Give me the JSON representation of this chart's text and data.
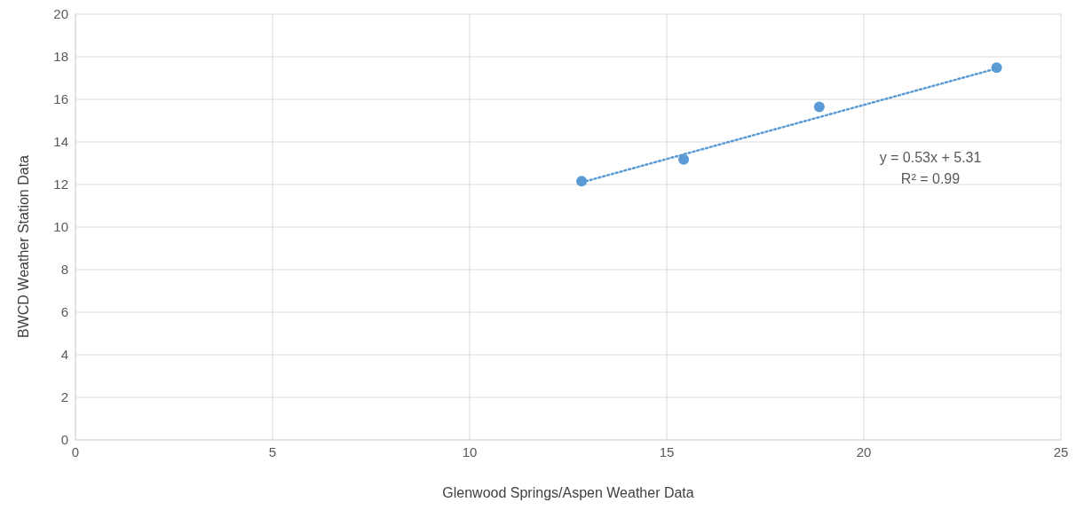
{
  "chart_data": {
    "type": "scatter",
    "xlabel": "Glenwood Springs/Aspen Weather Data",
    "ylabel": "BWCD Weather Station Data",
    "series": [
      {
        "color": "#5b9bd5",
        "marker": "circle",
        "x": [
          12.84,
          15.43,
          18.87,
          23.37
        ],
        "values": [
          12.16,
          13.18,
          15.65,
          17.49
        ]
      },
      {
        "type": "line",
        "color": "#5b9bd5",
        "line_style": "dotted",
        "x": [
          12.84,
          23.37
        ],
        "values": [
          12.1,
          17.45
        ]
      }
    ],
    "xlim": [
      0,
      25
    ],
    "xticks": [
      0,
      5,
      10,
      15,
      20,
      25
    ],
    "ylim": [
      0,
      20
    ],
    "yticks": [
      0,
      2,
      4,
      6,
      8,
      10,
      12,
      14,
      16,
      18,
      20
    ],
    "grid": true,
    "annotations": [
      "y = 0.53x + 5.31",
      "R² = 0.99"
    ]
  }
}
